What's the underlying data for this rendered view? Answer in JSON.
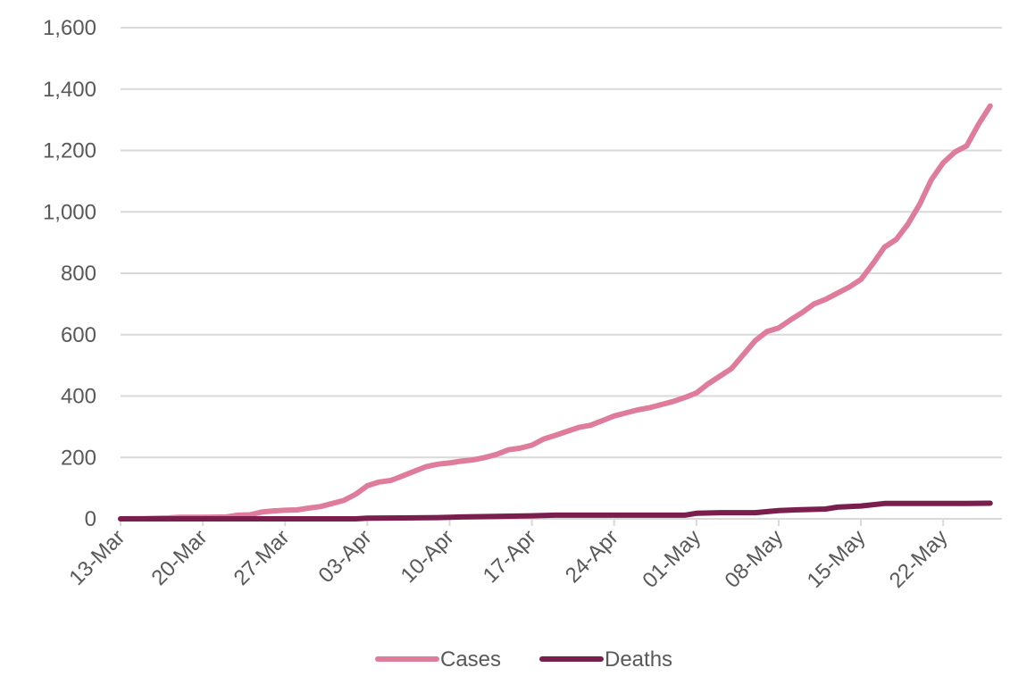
{
  "chart_data": {
    "type": "line",
    "title": "",
    "xlabel": "",
    "ylabel": "",
    "ylim": [
      0,
      1600
    ],
    "y_ticks": [
      0,
      200,
      400,
      600,
      800,
      1000,
      1200,
      1400,
      1600
    ],
    "y_tick_labels": [
      "0",
      "200",
      "400",
      "600",
      "800",
      "1,000",
      "1,200",
      "1,400",
      "1,600"
    ],
    "x_start": "2020-03-13",
    "x_end": "2020-05-27",
    "x_tick_labels": [
      "13-Mar",
      "20-Mar",
      "27-Mar",
      "03-Apr",
      "10-Apr",
      "17-Apr",
      "24-Apr",
      "01-May",
      "08-May",
      "15-May",
      "22-May"
    ],
    "x_tick_dates": [
      "2020-03-13",
      "2020-03-20",
      "2020-03-27",
      "2020-04-03",
      "2020-04-10",
      "2020-04-17",
      "2020-04-24",
      "2020-05-01",
      "2020-05-08",
      "2020-05-15",
      "2020-05-22"
    ],
    "grid": "horizontal",
    "legend_position": "bottom",
    "colors": {
      "cases": "#E07C9B",
      "deaths": "#7A1E4E",
      "grid": "#D9D9D9",
      "text": "#595959"
    },
    "series": [
      {
        "name": "Cases",
        "points": [
          [
            "2020-03-13",
            0
          ],
          [
            "2020-03-15",
            1
          ],
          [
            "2020-03-17",
            3
          ],
          [
            "2020-03-18",
            5
          ],
          [
            "2020-03-20",
            5
          ],
          [
            "2020-03-22",
            6
          ],
          [
            "2020-03-23",
            12
          ],
          [
            "2020-03-24",
            13
          ],
          [
            "2020-03-25",
            22
          ],
          [
            "2020-03-26",
            26
          ],
          [
            "2020-03-27",
            28
          ],
          [
            "2020-03-28",
            29
          ],
          [
            "2020-03-29",
            35
          ],
          [
            "2020-03-30",
            40
          ],
          [
            "2020-03-31",
            50
          ],
          [
            "2020-04-01",
            60
          ],
          [
            "2020-04-02",
            80
          ],
          [
            "2020-04-03",
            108
          ],
          [
            "2020-04-04",
            120
          ],
          [
            "2020-04-05",
            125
          ],
          [
            "2020-04-06",
            140
          ],
          [
            "2020-04-07",
            155
          ],
          [
            "2020-04-08",
            170
          ],
          [
            "2020-04-09",
            178
          ],
          [
            "2020-04-10",
            182
          ],
          [
            "2020-04-11",
            188
          ],
          [
            "2020-04-12",
            192
          ],
          [
            "2020-04-13",
            200
          ],
          [
            "2020-04-14",
            210
          ],
          [
            "2020-04-15",
            225
          ],
          [
            "2020-04-16",
            230
          ],
          [
            "2020-04-17",
            240
          ],
          [
            "2020-04-18",
            260
          ],
          [
            "2020-04-19",
            272
          ],
          [
            "2020-04-20",
            285
          ],
          [
            "2020-04-21",
            298
          ],
          [
            "2020-04-22",
            305
          ],
          [
            "2020-04-23",
            320
          ],
          [
            "2020-04-24",
            335
          ],
          [
            "2020-04-25",
            345
          ],
          [
            "2020-04-26",
            355
          ],
          [
            "2020-04-27",
            362
          ],
          [
            "2020-04-28",
            372
          ],
          [
            "2020-04-29",
            382
          ],
          [
            "2020-04-30",
            395
          ],
          [
            "2020-05-01",
            410
          ],
          [
            "2020-05-02",
            440
          ],
          [
            "2020-05-03",
            465
          ],
          [
            "2020-05-04",
            490
          ],
          [
            "2020-05-05",
            535
          ],
          [
            "2020-05-06",
            580
          ],
          [
            "2020-05-07",
            610
          ],
          [
            "2020-05-08",
            622
          ],
          [
            "2020-05-09",
            648
          ],
          [
            "2020-05-10",
            672
          ],
          [
            "2020-05-11",
            700
          ],
          [
            "2020-05-12",
            715
          ],
          [
            "2020-05-13",
            735
          ],
          [
            "2020-05-14",
            755
          ],
          [
            "2020-05-15",
            780
          ],
          [
            "2020-05-16",
            830
          ],
          [
            "2020-05-17",
            885
          ],
          [
            "2020-05-18",
            910
          ],
          [
            "2020-05-19",
            960
          ],
          [
            "2020-05-20",
            1025
          ],
          [
            "2020-05-21",
            1105
          ],
          [
            "2020-05-22",
            1160
          ],
          [
            "2020-05-23",
            1195
          ],
          [
            "2020-05-24",
            1215
          ],
          [
            "2020-05-25",
            1285
          ],
          [
            "2020-05-26",
            1345
          ]
        ]
      },
      {
        "name": "Deaths",
        "points": [
          [
            "2020-03-13",
            0
          ],
          [
            "2020-03-20",
            0
          ],
          [
            "2020-03-27",
            0
          ],
          [
            "2020-04-02",
            0
          ],
          [
            "2020-04-03",
            2
          ],
          [
            "2020-04-06",
            3
          ],
          [
            "2020-04-09",
            4
          ],
          [
            "2020-04-11",
            6
          ],
          [
            "2020-04-14",
            8
          ],
          [
            "2020-04-17",
            10
          ],
          [
            "2020-04-19",
            12
          ],
          [
            "2020-04-24",
            12
          ],
          [
            "2020-04-30",
            12
          ],
          [
            "2020-05-01",
            18
          ],
          [
            "2020-05-03",
            20
          ],
          [
            "2020-05-06",
            20
          ],
          [
            "2020-05-08",
            27
          ],
          [
            "2020-05-10",
            30
          ],
          [
            "2020-05-12",
            32
          ],
          [
            "2020-05-13",
            38
          ],
          [
            "2020-05-15",
            42
          ],
          [
            "2020-05-17",
            50
          ],
          [
            "2020-05-20",
            50
          ],
          [
            "2020-05-24",
            50
          ],
          [
            "2020-05-26",
            51
          ]
        ]
      }
    ]
  }
}
